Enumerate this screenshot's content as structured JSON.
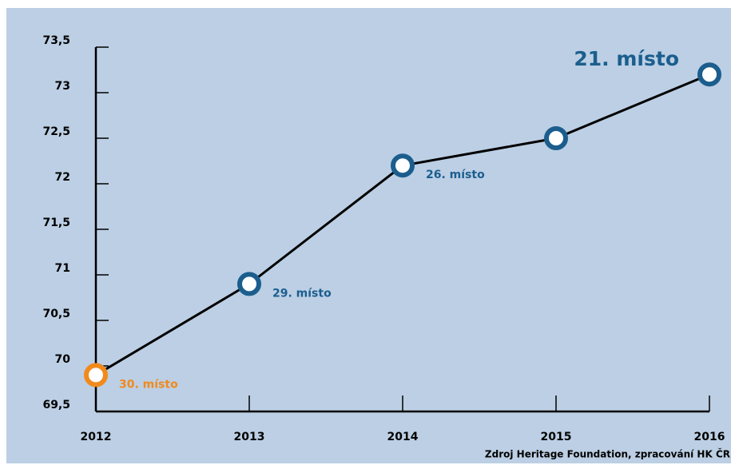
{
  "chart_data": {
    "type": "line",
    "categories": [
      "2012",
      "2013",
      "2014",
      "2015",
      "2016"
    ],
    "series": [
      {
        "values": [
          69.9,
          70.9,
          72.2,
          72.5,
          73.2
        ],
        "color": "#000000",
        "point_colors": [
          "#f08a1c",
          "#1b5e8e",
          "#1b5e8e",
          "#1b5e8e",
          "#1b5e8e"
        ]
      }
    ],
    "ylim": [
      69.5,
      73.5
    ],
    "yticks": [
      {
        "value": 69.5,
        "label": "69,5"
      },
      70,
      {
        "value": 70.5,
        "label": "70,5"
      },
      71,
      {
        "value": 71.5,
        "label": "71,5"
      },
      72,
      {
        "value": 72.5,
        "label": "72,5"
      },
      73,
      {
        "value": 73.5,
        "label": "73,5"
      }
    ],
    "annotations": [
      {
        "text": "30. místo",
        "x": "2012",
        "color": "#f08a1c"
      },
      {
        "text": "29. místo",
        "x": "2013",
        "color": "#1b5e8e"
      },
      {
        "text": "26. místo",
        "x": "2014",
        "color": "#1b5e8e"
      },
      {
        "text": "21. místo",
        "x": "2016",
        "color": "#1b5e8e"
      }
    ],
    "source": "Zdroj Heritage Foundation, zpracování HK ČR"
  }
}
